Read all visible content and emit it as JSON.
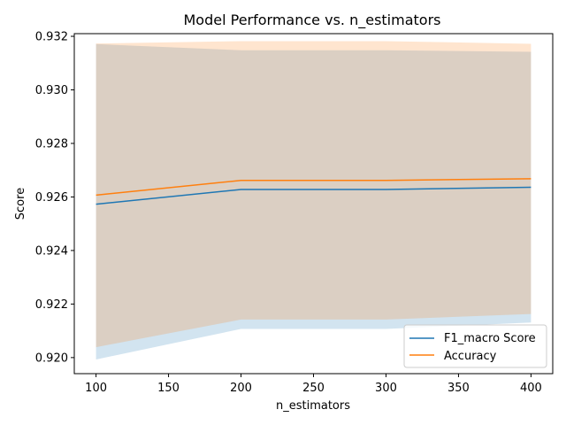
{
  "chart_data": {
    "type": "line",
    "title": "Model Performance vs. n_estimators",
    "xlabel": "n_estimators",
    "ylabel": "Score",
    "x": [
      100,
      200,
      300,
      400
    ],
    "xlim": [
      85,
      415
    ],
    "ylim": [
      0.9194,
      0.9321
    ],
    "xticks": [
      100,
      150,
      200,
      250,
      300,
      350,
      400
    ],
    "xtick_labels": [
      "100",
      "150",
      "200",
      "250",
      "300",
      "350",
      "400"
    ],
    "yticks": [
      0.92,
      0.922,
      0.924,
      0.926,
      0.928,
      0.93,
      0.932
    ],
    "ytick_labels": [
      "0.920",
      "0.922",
      "0.924",
      "0.926",
      "0.928",
      "0.930",
      "0.932"
    ],
    "grid": false,
    "legend_position": "lower-right",
    "series": [
      {
        "name": "F1_macro Score",
        "color": "#1f77b4",
        "values": [
          0.92573,
          0.92628,
          0.92628,
          0.92636
        ],
        "band_lower": [
          0.91993,
          0.92107,
          0.92107,
          0.92131
        ],
        "band_upper": [
          0.93171,
          0.93148,
          0.93148,
          0.93142
        ]
      },
      {
        "name": "Accuracy",
        "color": "#ff7f0e",
        "values": [
          0.92607,
          0.92662,
          0.92662,
          0.92668
        ],
        "band_lower": [
          0.92039,
          0.92142,
          0.92142,
          0.92163
        ],
        "band_upper": [
          0.93173,
          0.93182,
          0.93182,
          0.93172
        ]
      }
    ]
  }
}
